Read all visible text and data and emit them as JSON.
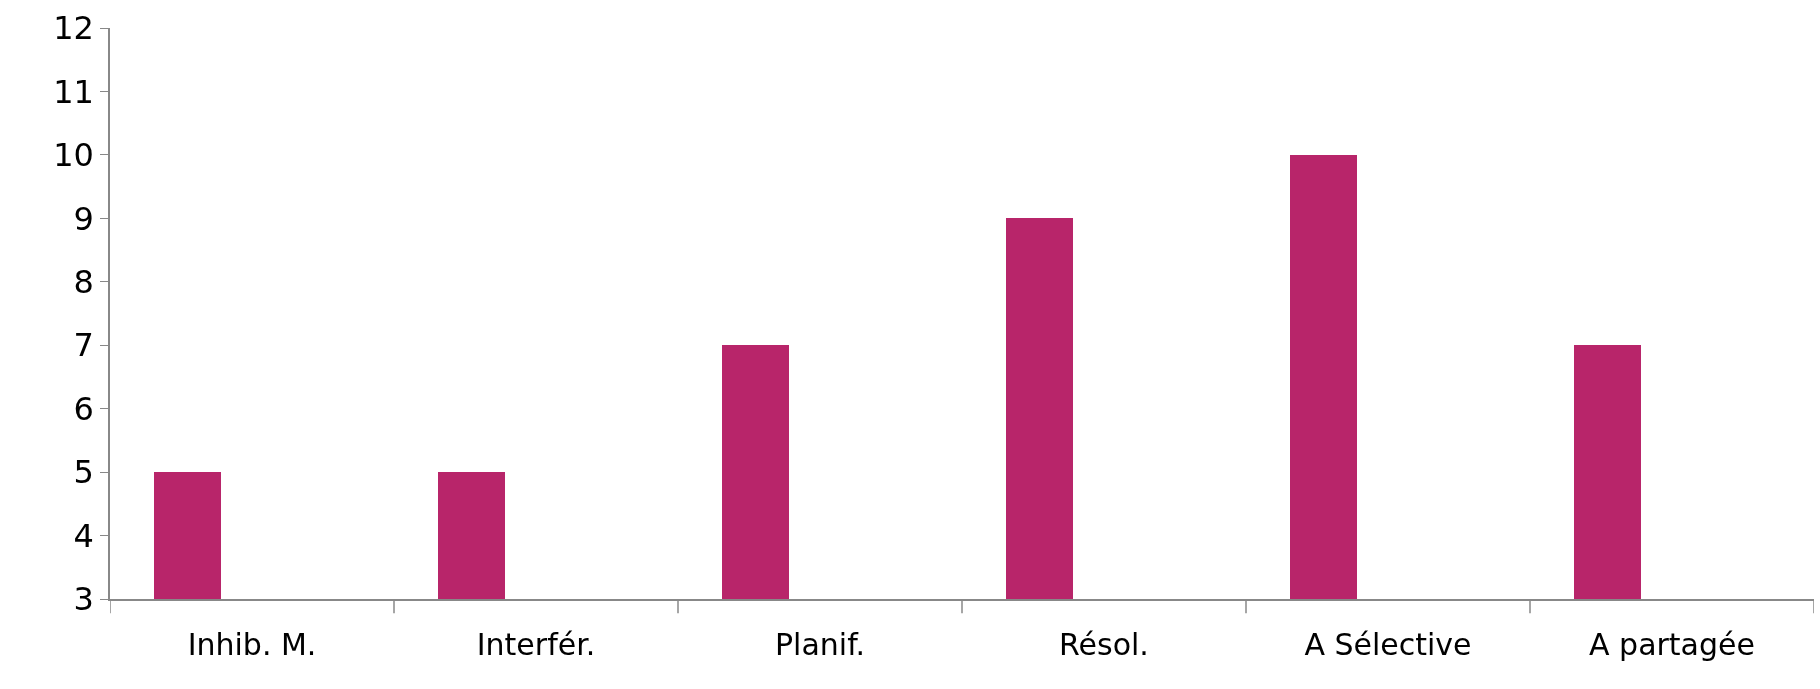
{
  "chart_data": {
    "type": "bar",
    "categories": [
      "Inhib. M.",
      "Interfér.",
      "Planif.",
      "Résol.",
      "A Sélective",
      "A partagée"
    ],
    "values": [
      5,
      5,
      7,
      9,
      10,
      7
    ],
    "color": "#b8256a",
    "ylim": [
      3,
      12
    ],
    "yticks": [
      3,
      4,
      5,
      6,
      7,
      8,
      9,
      10,
      11,
      12
    ]
  }
}
